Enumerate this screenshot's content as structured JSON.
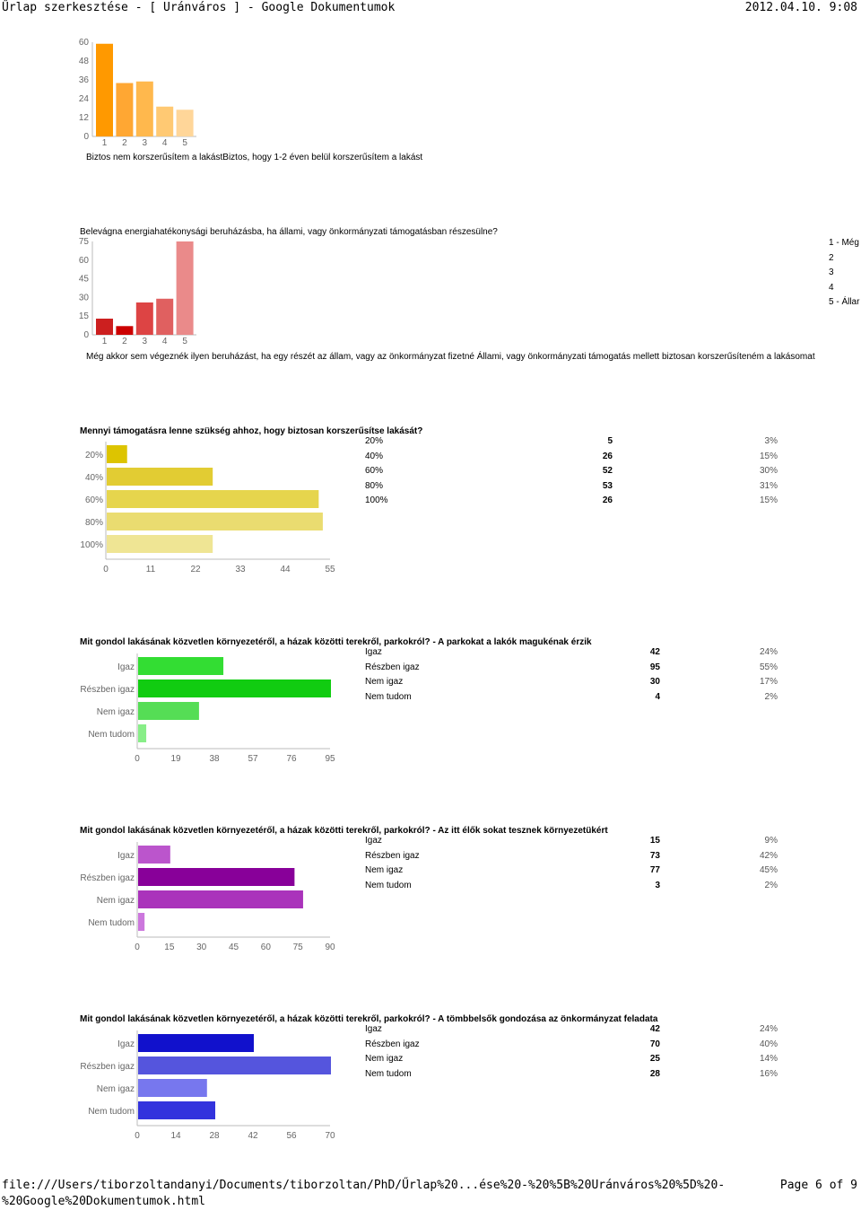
{
  "header": {
    "title": "Űrlap szerkesztése - [ Uránváros ] - Google Dokumentumok",
    "date": "2012.04.10. 9:08"
  },
  "footer": {
    "path": "file:///Users/tiborzoltandanyi/Documents/tiborzoltan/PhD/Űrlap%20...ése%20-%20%5B%20Uránváros%20%5D%20-%20Google%20Dokumentumok.html",
    "page": "Page 6 of 9"
  },
  "section1": {
    "caption": "Biztos nem korszerűsítem a lakástBiztos, hogy 1-2 éven belül korszerűsítem a lakást"
  },
  "section2": {
    "question": "Belevágna energiahatékonysági beruházásba, ha állami, vagy önkormányzati támogatásban részesülne?",
    "caption": "Még akkor sem végeznék ilyen beruházást, ha egy részét az állam, vagy az önkormányzat fizetné Állami, vagy önkormányzati támogatás mellett biztosan korszerűsíteném a lakásomat",
    "legend": [
      "1 - Még",
      "2",
      "3",
      "4",
      "5 - Állar"
    ]
  },
  "section3": {
    "question": "Mennyi támogatásra lenne szükség ahhoz, hogy biztosan korszerűsítse lakását?",
    "rows": [
      {
        "label": "20%",
        "count": "5",
        "pct": "3%"
      },
      {
        "label": "40%",
        "count": "26",
        "pct": "15%"
      },
      {
        "label": "60%",
        "count": "52",
        "pct": "30%"
      },
      {
        "label": "80%",
        "count": "53",
        "pct": "31%"
      },
      {
        "label": "100%",
        "count": "26",
        "pct": "15%"
      }
    ]
  },
  "section4": {
    "question": "Mit gondol lakásának közvetlen környezetéről, a házak közötti terekről, parkokról? - A parkokat a lakók magukénak érzik",
    "rows": [
      {
        "label": "Igaz",
        "count": "42",
        "pct": "24%"
      },
      {
        "label": "Részben igaz",
        "count": "95",
        "pct": "55%"
      },
      {
        "label": "Nem igaz",
        "count": "30",
        "pct": "17%"
      },
      {
        "label": "Nem tudom",
        "count": "4",
        "pct": "2%"
      }
    ]
  },
  "section5": {
    "question": "Mit gondol lakásának közvetlen környezetéről, a házak közötti terekről, parkokról? - Az itt élők sokat tesznek környezetükért",
    "rows": [
      {
        "label": "Igaz",
        "count": "15",
        "pct": "9%"
      },
      {
        "label": "Részben igaz",
        "count": "73",
        "pct": "42%"
      },
      {
        "label": "Nem igaz",
        "count": "77",
        "pct": "45%"
      },
      {
        "label": "Nem tudom",
        "count": "3",
        "pct": "2%"
      }
    ]
  },
  "section6": {
    "question": "Mit gondol lakásának közvetlen környezetéről, a házak közötti terekről, parkokról? - A tömbbelsők gondozása az önkormányzat feladata",
    "rows": [
      {
        "label": "Igaz",
        "count": "42",
        "pct": "24%"
      },
      {
        "label": "Részben igaz",
        "count": "70",
        "pct": "40%"
      },
      {
        "label": "Nem igaz",
        "count": "25",
        "pct": "14%"
      },
      {
        "label": "Nem tudom",
        "count": "28",
        "pct": "16%"
      }
    ]
  },
  "chart_data": [
    {
      "type": "bar",
      "orientation": "vertical",
      "categories": [
        "1",
        "2",
        "3",
        "4",
        "5"
      ],
      "values": [
        59,
        34,
        35,
        19,
        17
      ],
      "yticks": [
        "0",
        "12",
        "24",
        "36",
        "48",
        "60"
      ],
      "ylim": [
        0,
        60
      ],
      "colors": [
        "#ff9900",
        "#ffa733",
        "#ffb84d",
        "#ffc973",
        "#ffd699"
      ]
    },
    {
      "type": "bar",
      "orientation": "vertical",
      "categories": [
        "1",
        "2",
        "3",
        "4",
        "5"
      ],
      "values": [
        13,
        7,
        26,
        29,
        75
      ],
      "yticks": [
        "0",
        "15",
        "30",
        "45",
        "60",
        "75"
      ],
      "ylim": [
        0,
        75
      ],
      "colors": [
        "#cc1f1f",
        "#cc0000",
        "#dd4444",
        "#e06060",
        "#ea8a8a"
      ]
    },
    {
      "type": "bar",
      "orientation": "horizontal",
      "categories": [
        "20%",
        "40%",
        "60%",
        "80%",
        "100%"
      ],
      "values": [
        5,
        26,
        52,
        53,
        26
      ],
      "xticks": [
        "0",
        "11",
        "22",
        "33",
        "44",
        "55"
      ],
      "xlim": [
        0,
        55
      ],
      "colors": [
        "#ddc400",
        "#e2cc33",
        "#e6d54d",
        "#eadc70",
        "#efe594"
      ]
    },
    {
      "type": "bar",
      "orientation": "horizontal",
      "categories": [
        "Igaz",
        "Részben igaz",
        "Nem igaz",
        "Nem tudom"
      ],
      "values": [
        42,
        95,
        30,
        4
      ],
      "xticks": [
        "0",
        "19",
        "38",
        "57",
        "76",
        "95"
      ],
      "xlim": [
        0,
        95
      ],
      "colors": [
        "#33dd33",
        "#11cc11",
        "#55dd55",
        "#88ee88"
      ]
    },
    {
      "type": "bar",
      "orientation": "horizontal",
      "categories": [
        "Igaz",
        "Részben igaz",
        "Nem igaz",
        "Nem tudom"
      ],
      "values": [
        15,
        73,
        77,
        3
      ],
      "xticks": [
        "0",
        "15",
        "30",
        "45",
        "60",
        "75",
        "90"
      ],
      "xlim": [
        0,
        90
      ],
      "colors": [
        "#bb55cc",
        "#880099",
        "#aa33bb",
        "#cc77dd"
      ]
    },
    {
      "type": "bar",
      "orientation": "horizontal",
      "categories": [
        "Igaz",
        "Részben igaz",
        "Nem igaz",
        "Nem tudom"
      ],
      "values": [
        42,
        70,
        25,
        28
      ],
      "xticks": [
        "0",
        "14",
        "28",
        "42",
        "56",
        "70"
      ],
      "xlim": [
        0,
        70
      ],
      "colors": [
        "#1111cc",
        "#5555dd",
        "#7777ee",
        "#3333dd"
      ]
    }
  ]
}
